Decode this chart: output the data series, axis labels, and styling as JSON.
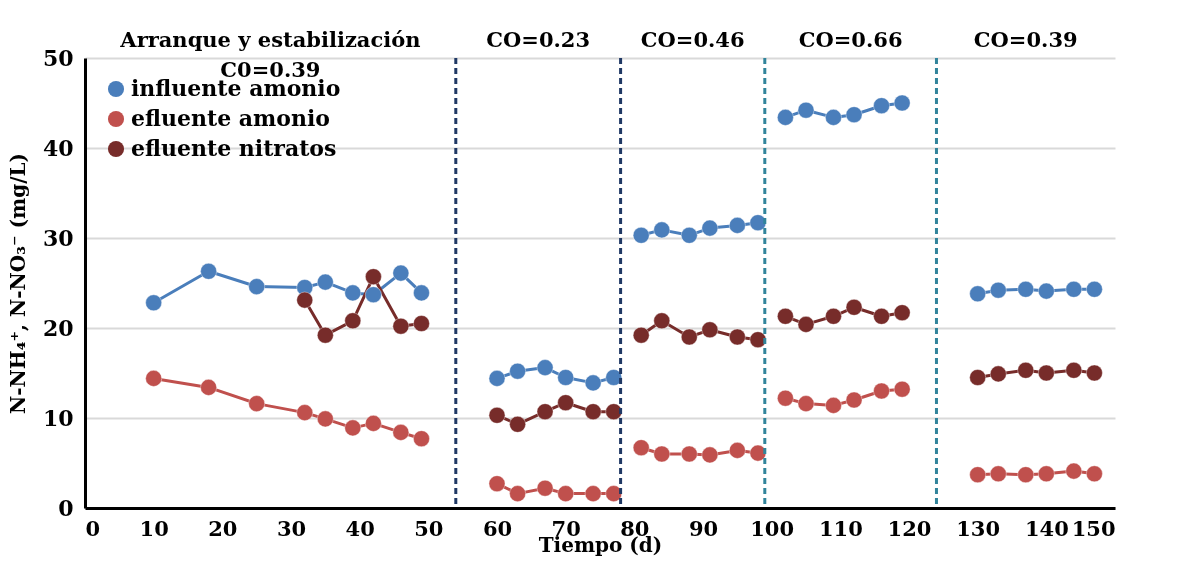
{
  "chart_data": {
    "type": "line",
    "xlabel": "Tiempo (d)",
    "ylabel": "N-NH₄⁺, N-NO₃⁻ (mg/L)",
    "x": [
      10,
      18,
      25,
      32,
      35,
      39,
      42,
      46,
      49,
      null,
      60,
      63,
      67,
      70,
      74,
      77,
      null,
      81,
      84,
      88,
      91,
      95,
      98,
      null,
      102,
      105,
      109,
      112,
      116,
      119,
      null,
      130,
      133,
      137,
      140,
      144,
      147
    ],
    "series": [
      {
        "name": "influente amonio",
        "color": "#4a7ebb",
        "values": [
          22.8,
          26.3,
          24.6,
          24.5,
          25.1,
          23.9,
          23.7,
          26.1,
          23.9,
          null,
          14.4,
          15.2,
          15.6,
          14.5,
          13.9,
          14.5,
          null,
          30.3,
          30.9,
          30.3,
          31.1,
          31.4,
          31.7,
          null,
          43.4,
          44.2,
          43.4,
          43.7,
          44.7,
          45.0,
          null,
          23.8,
          24.2,
          24.3,
          24.1,
          24.3,
          24.3
        ]
      },
      {
        "name": "efluente amonio",
        "color": "#c0504d",
        "values": [
          14.4,
          13.4,
          11.6,
          10.6,
          9.9,
          8.9,
          9.4,
          8.4,
          7.7,
          null,
          2.7,
          1.6,
          2.2,
          1.6,
          1.6,
          1.6,
          null,
          6.7,
          6.0,
          6.0,
          5.9,
          6.4,
          6.1,
          null,
          12.2,
          11.6,
          11.4,
          12.0,
          13.0,
          13.2,
          null,
          3.7,
          3.8,
          3.7,
          3.8,
          4.1,
          3.8
        ]
      },
      {
        "name": "efluente nitratos",
        "color": "#772c2a",
        "values": [
          null,
          null,
          null,
          23.1,
          19.2,
          20.8,
          25.7,
          20.2,
          20.5,
          null,
          10.3,
          9.3,
          10.7,
          11.7,
          10.7,
          10.7,
          null,
          19.2,
          20.8,
          19.0,
          19.8,
          19.0,
          18.7,
          null,
          21.3,
          20.4,
          21.3,
          22.3,
          21.3,
          21.7,
          null,
          14.5,
          14.9,
          15.3,
          15.0,
          15.3,
          15.0
        ]
      }
    ],
    "xlim": [
      0,
      150
    ],
    "xticks": [
      0,
      10,
      20,
      30,
      40,
      50,
      60,
      70,
      80,
      90,
      100,
      110,
      120,
      130,
      140,
      150
    ],
    "ylim": [
      0,
      50
    ],
    "yticks": [
      0,
      10,
      20,
      30,
      40,
      50
    ],
    "grid": "y",
    "legend": "top left",
    "marker": "circle",
    "line_style": "solid",
    "ref_lines": [
      {
        "axis": "x",
        "value": 54,
        "color": "#1f3864",
        "line_style": "dashed"
      },
      {
        "axis": "x",
        "value": 78,
        "color": "#1f3864",
        "line_style": "dashed"
      },
      {
        "axis": "x",
        "value": 99,
        "color": "#31849b",
        "line_style": "dashed"
      },
      {
        "axis": "x",
        "value": 124,
        "color": "#31849b",
        "line_style": "dashed"
      }
    ],
    "annotations": [
      "Arranque y estabilización\nC0=0.39",
      "CO=0.23",
      "CO=0.46",
      "CO=0.66",
      "CO=0.39"
    ]
  }
}
